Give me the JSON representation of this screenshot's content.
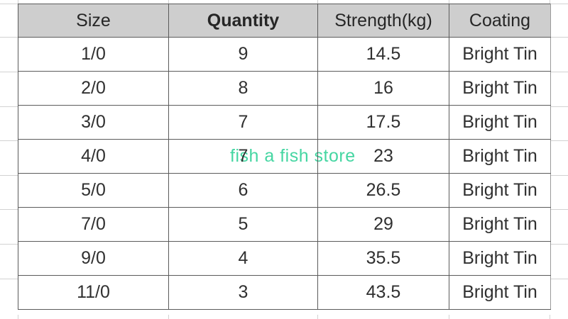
{
  "watermark": {
    "text": "fish a fish store",
    "color": "#45d6a2"
  },
  "table": {
    "headers": [
      "Size",
      "Quantity",
      "Strength(kg)",
      "Coating"
    ],
    "rows": [
      {
        "size": "1/0",
        "quantity": "9",
        "strength": "14.5",
        "coating": "Bright Tin"
      },
      {
        "size": "2/0",
        "quantity": "8",
        "strength": "16",
        "coating": "Bright Tin"
      },
      {
        "size": "3/0",
        "quantity": "7",
        "strength": "17.5",
        "coating": "Bright Tin"
      },
      {
        "size": "4/0",
        "quantity": "7",
        "strength": "23",
        "coating": "Bright Tin"
      },
      {
        "size": "5/0",
        "quantity": "6",
        "strength": "26.5",
        "coating": "Bright Tin"
      },
      {
        "size": "7/0",
        "quantity": "5",
        "strength": "29",
        "coating": "Bright Tin"
      },
      {
        "size": "9/0",
        "quantity": "4",
        "strength": "35.5",
        "coating": "Bright Tin"
      },
      {
        "size": "11/0",
        "quantity": "3",
        "strength": "43.5",
        "coating": "Bright Tin"
      }
    ]
  },
  "colors": {
    "header_bg": "#cecece",
    "border": "#5b5b5b",
    "text": "#303030",
    "gridline": "#d2d2d2",
    "watermark": "#45d6a2"
  }
}
